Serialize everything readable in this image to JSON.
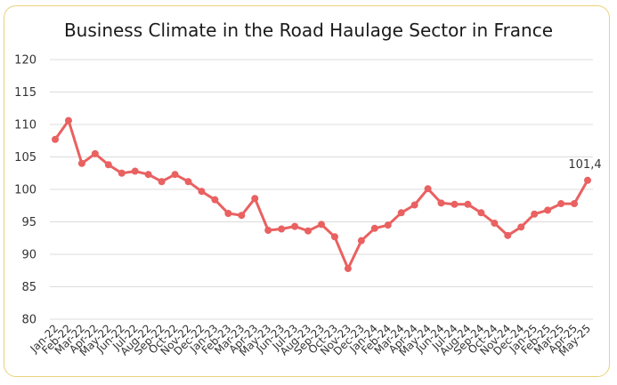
{
  "chart_data": {
    "type": "line",
    "title": "Business Climate in the Road Haulage Sector in France",
    "xlabel": "",
    "ylabel": "",
    "ylim": [
      80,
      120
    ],
    "yticks": [
      "80",
      "85",
      "90",
      "95",
      "100",
      "105",
      "110",
      "115",
      "120"
    ],
    "grid": true,
    "legend": "none",
    "color": "#e96161",
    "categories": [
      "Jan-22",
      "Feb-22",
      "Mar-22",
      "Apr-22",
      "May-22",
      "Jun-22",
      "Jul-22",
      "Aug-22",
      "Sep-22",
      "Oct-22",
      "Nov-22",
      "Dec-22",
      "Jan-23",
      "Feb-23",
      "Mar-23",
      "Apr-23",
      "May-23",
      "Jun-23",
      "Jul-23",
      "Aug-23",
      "Sep-23",
      "Oct-23",
      "Nov-23",
      "Dec-23",
      "Jan-24",
      "Feb-24",
      "Mar-24",
      "Apr-24",
      "May-24",
      "Jun-24",
      "Jul-24",
      "Aug-24",
      "Sep-24",
      "Oct-24",
      "Nov-24",
      "Dec-24",
      "Jan-25",
      "Feb-25",
      "Mar-25",
      "Apr-25",
      "May-25"
    ],
    "values": [
      107.7,
      110.6,
      104.0,
      105.5,
      103.8,
      102.5,
      102.8,
      102.3,
      101.2,
      102.3,
      101.2,
      99.7,
      98.4,
      96.3,
      96.0,
      98.6,
      93.7,
      93.9,
      94.3,
      93.6,
      94.6,
      92.7,
      87.8,
      92.1,
      94.0,
      94.5,
      96.4,
      97.6,
      100.1,
      97.9,
      97.7,
      97.7,
      96.4,
      94.8,
      92.9,
      94.2,
      96.2,
      96.8,
      97.8,
      97.8,
      101.4
    ],
    "data_labels": [
      {
        "index": 40,
        "text": "101,4"
      }
    ]
  }
}
